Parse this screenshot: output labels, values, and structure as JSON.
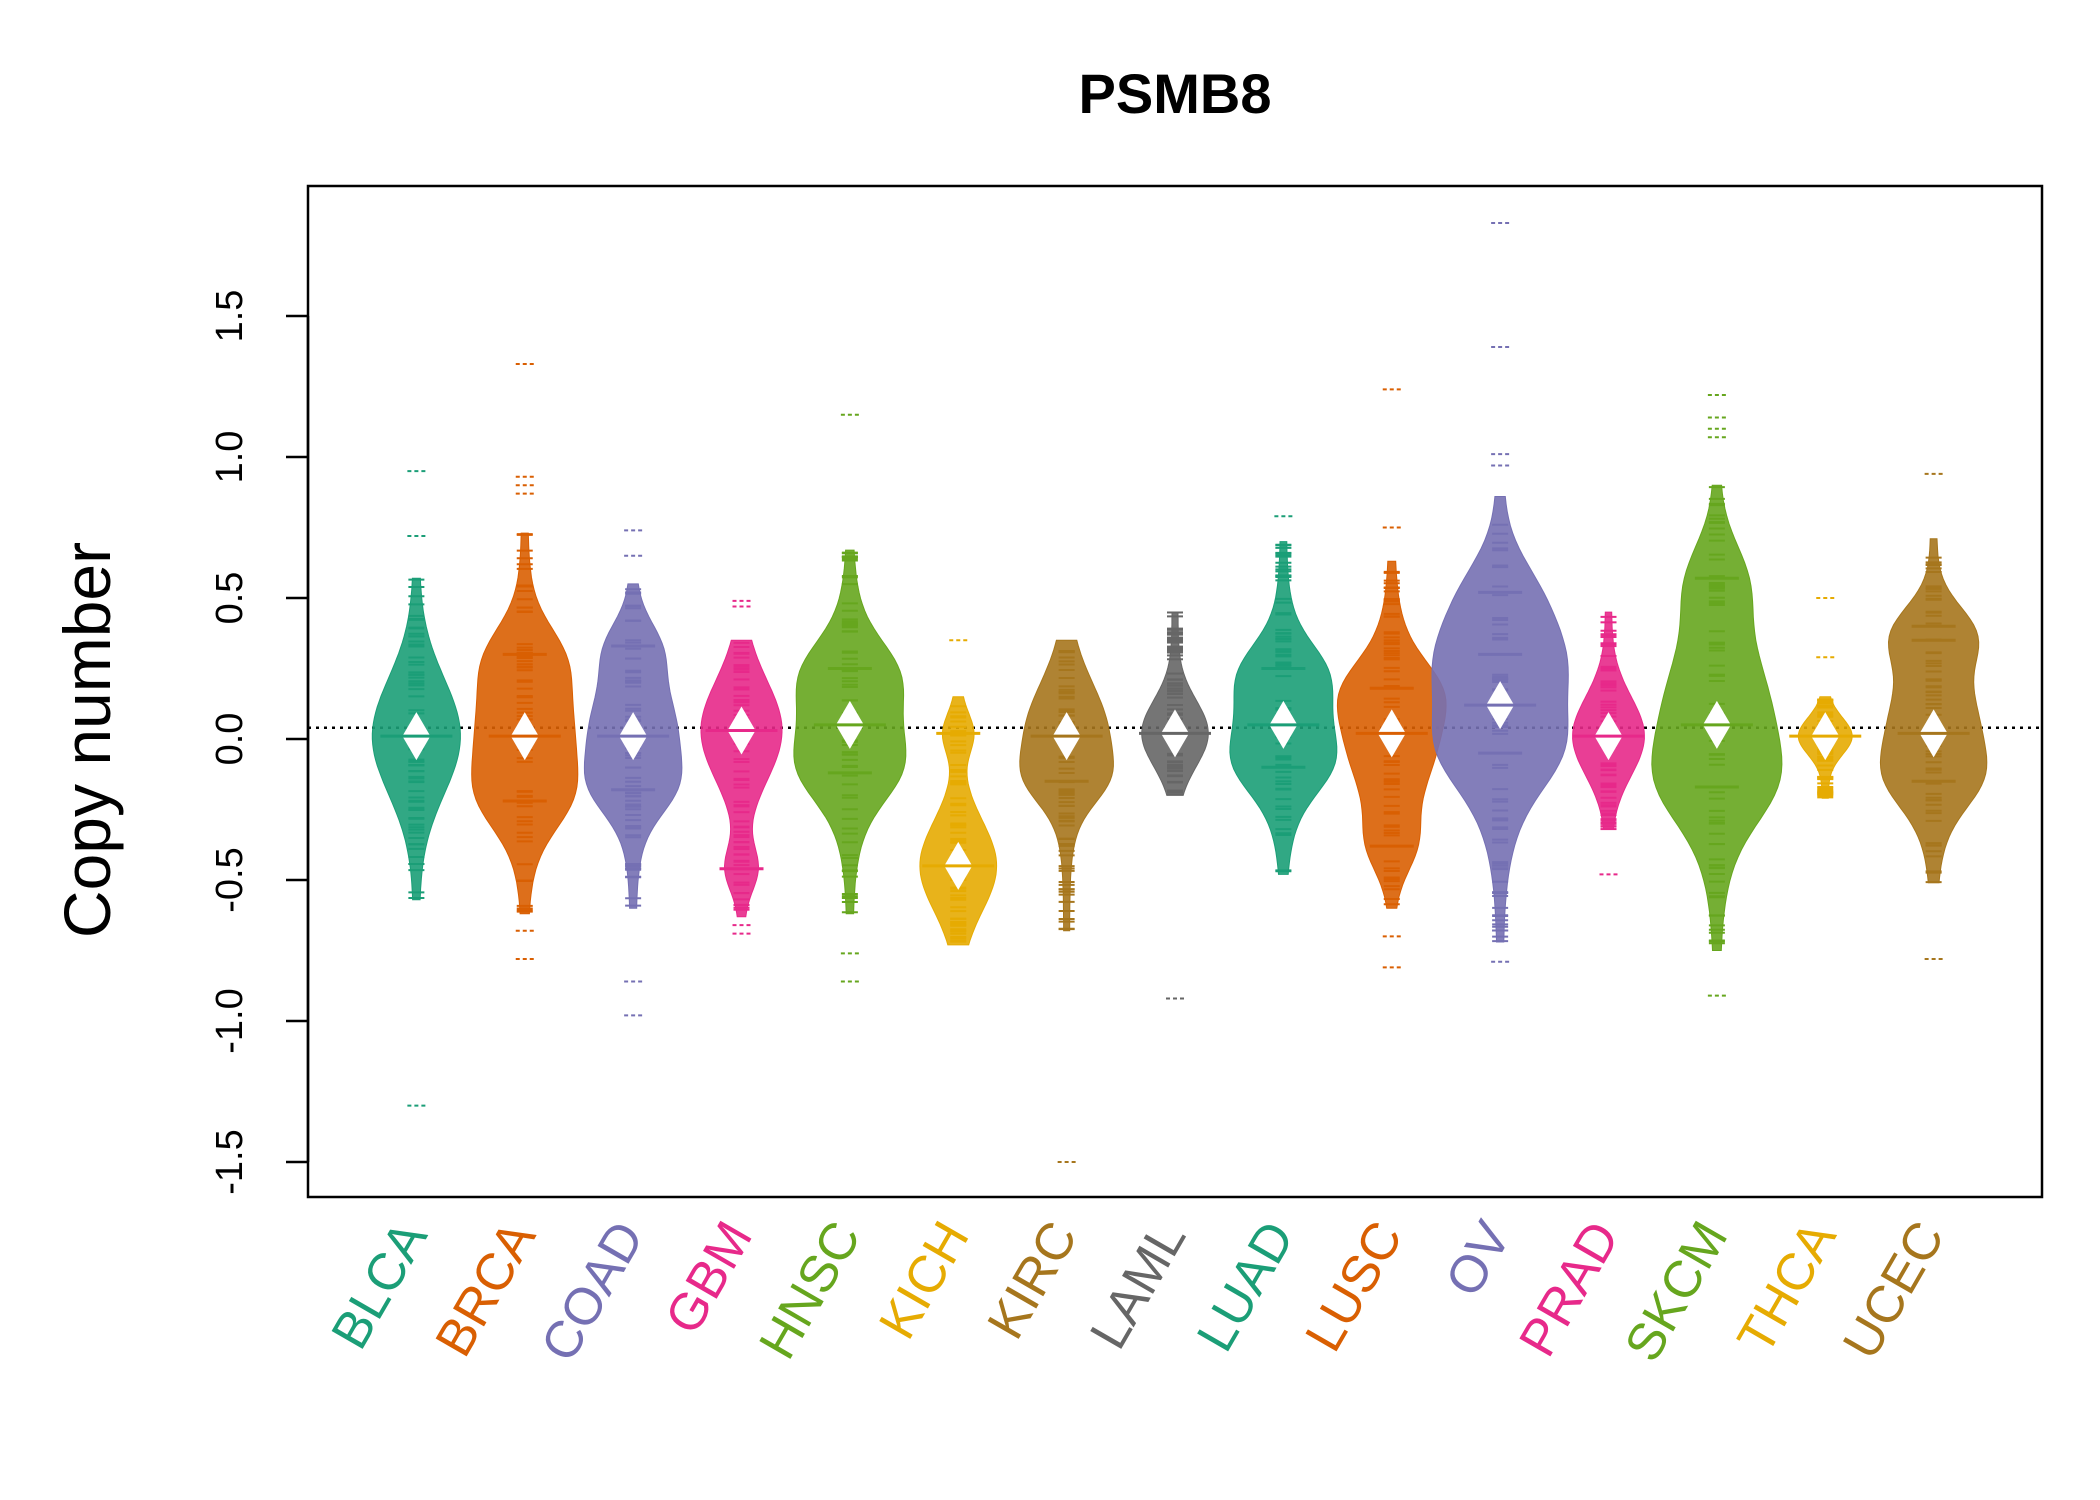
{
  "chart_data": {
    "type": "beanplot",
    "title": "PSMB8",
    "xlabel": "",
    "ylabel": "Copy number",
    "ylim": [
      -1.5,
      1.85
    ],
    "yticks": [
      -1.5,
      -1.0,
      -0.5,
      0.0,
      0.5,
      1.0,
      1.5
    ],
    "ytick_labels": [
      "-1.5",
      "-1.0",
      "-0.5",
      "0.0",
      "0.5",
      "1.0",
      "1.5"
    ],
    "reference_line": 0.04,
    "categories": [
      "BLCA",
      "BRCA",
      "COAD",
      "GBM",
      "HNSC",
      "KICH",
      "KIRC",
      "LAML",
      "LUAD",
      "LUSC",
      "OV",
      "PRAD",
      "SKCM",
      "THCA",
      "UCEC"
    ],
    "colors": [
      "#1b9e77",
      "#d95f02",
      "#7570b3",
      "#e7298a",
      "#66a61e",
      "#e6ab02",
      "#a6761d",
      "#666666",
      "#1b9e77",
      "#d95f02",
      "#7570b3",
      "#e7298a",
      "#66a61e",
      "#e6ab02",
      "#a6761d"
    ],
    "series": [
      {
        "name": "BLCA",
        "min": -0.57,
        "max": 0.57,
        "medians": [
          0.01
        ],
        "outliers": [
          0.95,
          0.72,
          -1.3
        ]
      },
      {
        "name": "BRCA",
        "min": -0.62,
        "max": 0.73,
        "medians": [
          0.01,
          0.3,
          -0.22
        ],
        "outliers": [
          1.33,
          0.93,
          0.9,
          0.87,
          -0.68,
          -0.78
        ]
      },
      {
        "name": "COAD",
        "min": -0.6,
        "max": 0.55,
        "medians": [
          0.01,
          0.33,
          -0.18
        ],
        "outliers": [
          0.74,
          0.65,
          -0.86,
          -0.98
        ]
      },
      {
        "name": "GBM",
        "min": -0.63,
        "max": 0.35,
        "medians": [
          0.03,
          -0.46
        ],
        "outliers": [
          0.49,
          0.47,
          -0.69,
          -0.66
        ]
      },
      {
        "name": "HNSC",
        "min": -0.62,
        "max": 0.67,
        "medians": [
          0.05,
          0.25,
          -0.12
        ],
        "outliers": [
          1.15,
          -0.76,
          -0.86
        ]
      },
      {
        "name": "KICH",
        "min": -0.73,
        "max": 0.15,
        "medians": [
          -0.45,
          0.02
        ],
        "outliers": [
          0.35
        ]
      },
      {
        "name": "KIRC",
        "min": -0.68,
        "max": 0.35,
        "medians": [
          0.01,
          -0.15
        ],
        "outliers": [
          -1.5
        ]
      },
      {
        "name": "LAML",
        "min": -0.2,
        "max": 0.45,
        "medians": [
          0.02
        ],
        "outliers": [
          -0.92
        ]
      },
      {
        "name": "LUAD",
        "min": -0.48,
        "max": 0.7,
        "medians": [
          0.05,
          0.25,
          -0.1
        ],
        "outliers": [
          0.79
        ]
      },
      {
        "name": "LUSC",
        "min": -0.6,
        "max": 0.63,
        "medians": [
          0.02,
          0.18,
          -0.38
        ],
        "outliers": [
          1.24,
          0.75,
          -0.7,
          -0.81
        ]
      },
      {
        "name": "OV",
        "min": -0.72,
        "max": 0.86,
        "medians": [
          0.12,
          0.52,
          0.3,
          -0.05
        ],
        "outliers": [
          1.83,
          1.39,
          1.01,
          0.97,
          -0.79
        ]
      },
      {
        "name": "PRAD",
        "min": -0.32,
        "max": 0.45,
        "medians": [
          0.01
        ],
        "outliers": [
          -0.48
        ]
      },
      {
        "name": "SKCM",
        "min": -0.75,
        "max": 0.9,
        "medians": [
          0.05,
          0.57,
          -0.17
        ],
        "outliers": [
          1.22,
          1.14,
          1.1,
          1.07,
          -0.91
        ]
      },
      {
        "name": "THCA",
        "min": -0.21,
        "max": 0.15,
        "medians": [
          0.01
        ],
        "outliers": [
          0.5,
          0.29
        ]
      },
      {
        "name": "UCEC",
        "min": -0.51,
        "max": 0.71,
        "medians": [
          0.02,
          0.4,
          0.35,
          -0.15
        ],
        "outliers": [
          0.94,
          -0.78
        ]
      }
    ]
  }
}
